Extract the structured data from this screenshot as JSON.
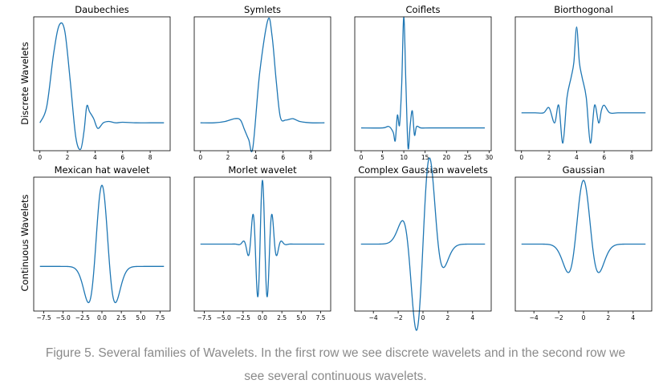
{
  "colors": {
    "line": "#1f77b4",
    "frame": "#000000",
    "caption": "#8a8a8a"
  },
  "row_labels": [
    "Discrete Wavelets",
    "Continuous Wavelets"
  ],
  "caption": {
    "line1": "Figure 5. Several families of Wavelets. In the first row we see discrete wavelets and in the second row we",
    "line2": "see several continuous wavelets."
  },
  "chart_data": [
    {
      "type": "line",
      "title": "Daubechies",
      "xlim": [
        -0.45,
        9.45
      ],
      "ylim": [
        -1.0,
        3.8
      ],
      "xticks": [
        0,
        2,
        4,
        6,
        8
      ],
      "tick_labels": [
        "0",
        "2",
        "4",
        "6",
        "8"
      ],
      "x": [
        0,
        0.5,
        1.0,
        1.4,
        1.8,
        2.2,
        2.6,
        2.95,
        3.2,
        3.4,
        3.6,
        3.9,
        4.2,
        4.6,
        5.0,
        5.5,
        6.0,
        7.0,
        8.0,
        9.0
      ],
      "y": [
        0.0,
        0.6,
        2.5,
        3.5,
        3.3,
        1.5,
        -0.5,
        -0.95,
        -0.3,
        0.6,
        0.4,
        0.15,
        -0.2,
        0.0,
        0.05,
        0.0,
        0.02,
        0.0,
        0.0,
        0.0
      ]
    },
    {
      "type": "line",
      "title": "Symlets",
      "xlim": [
        -0.45,
        9.45
      ],
      "ylim": [
        -1.0,
        3.8
      ],
      "xticks": [
        0,
        2,
        4,
        6,
        8
      ],
      "tick_labels": [
        "0",
        "2",
        "4",
        "6",
        "8"
      ],
      "x": [
        0,
        1.0,
        1.8,
        2.5,
        2.9,
        3.2,
        3.5,
        3.8,
        4.3,
        4.9,
        5.2,
        5.5,
        5.8,
        6.2,
        6.7,
        7.2,
        8.0,
        9.0
      ],
      "y": [
        0.0,
        0.0,
        0.05,
        0.15,
        0.1,
        -0.25,
        -0.6,
        -0.9,
        1.8,
        3.7,
        3.1,
        1.5,
        0.2,
        0.1,
        0.15,
        0.05,
        0.0,
        0.0
      ]
    },
    {
      "type": "line",
      "title": "Coiflets",
      "xlim": [
        -1.5,
        30.5
      ],
      "ylim": [
        -0.8,
        3.9
      ],
      "xticks": [
        0,
        5,
        10,
        15,
        20,
        25,
        30
      ],
      "tick_labels": [
        "0",
        "5",
        "10",
        "15",
        "20",
        "25",
        "30"
      ],
      "x": [
        0,
        5.0,
        6.5,
        7.5,
        8.0,
        8.5,
        9.0,
        9.5,
        10.0,
        10.5,
        11.0,
        11.5,
        12.0,
        12.5,
        13.0,
        14.0,
        16.0,
        20.0,
        29.0
      ],
      "y": [
        0.0,
        0.0,
        0.05,
        -0.15,
        -0.45,
        0.45,
        0.1,
        1.5,
        3.9,
        1.5,
        -0.7,
        0.1,
        0.6,
        -0.25,
        0.05,
        0.0,
        0.0,
        0.0,
        0.0
      ]
    },
    {
      "type": "line",
      "title": "Biorthogonal",
      "xlim": [
        -0.45,
        9.45
      ],
      "ylim": [
        -0.75,
        1.9
      ],
      "xticks": [
        0,
        2,
        4,
        6,
        8
      ],
      "tick_labels": [
        "0",
        "2",
        "4",
        "6",
        "8"
      ],
      "x": [
        0,
        1.0,
        1.6,
        2.0,
        2.4,
        2.7,
        3.0,
        3.3,
        3.6,
        3.8,
        4.0,
        4.2,
        4.4,
        4.7,
        5.0,
        5.3,
        5.6,
        5.8,
        6.0,
        6.4,
        7.0,
        8.0,
        9.0
      ],
      "y": [
        0.0,
        0.0,
        0.0,
        0.1,
        -0.2,
        0.15,
        -0.6,
        0.3,
        0.7,
        1.0,
        1.7,
        1.0,
        0.7,
        0.3,
        -0.6,
        0.15,
        -0.2,
        0.05,
        0.15,
        0.0,
        0.0,
        0.0,
        0.0
      ]
    },
    {
      "type": "line",
      "title": "Mexican hat wavelet",
      "xlim": [
        -8.8,
        8.8
      ],
      "ylim": [
        -0.55,
        1.1
      ],
      "xticks": [
        -7.5,
        -5.0,
        -2.5,
        0.0,
        2.5,
        5.0,
        7.5
      ],
      "tick_labels": [
        "−7.5",
        "−5.0",
        "−2.5",
        "0.0",
        "2.5",
        "5.0",
        "7.5"
      ],
      "function": "mexican_hat",
      "x_range": [
        -8,
        8
      ]
    },
    {
      "type": "line",
      "title": "Morlet wavelet",
      "xlim": [
        -8.8,
        8.8
      ],
      "ylim": [
        -1.05,
        1.05
      ],
      "xticks": [
        -7.5,
        -5.0,
        -2.5,
        0.0,
        2.5,
        5.0,
        7.5
      ],
      "tick_labels": [
        "−7.5",
        "−5.0",
        "−2.5",
        "0.0",
        "2.5",
        "5.0",
        "7.5"
      ],
      "function": "morlet",
      "x_range": [
        -8,
        8
      ]
    },
    {
      "type": "line",
      "title": "Complex Gaussian wavelets",
      "xlim": [
        -5.5,
        5.5
      ],
      "ylim": [
        -1.05,
        1.05
      ],
      "xticks": [
        -4,
        -2,
        0,
        2,
        4
      ],
      "tick_labels": [
        "−4",
        "−2",
        "0",
        "2",
        "4"
      ],
      "function": "complex_gaussian",
      "x_range": [
        -5,
        5
      ]
    },
    {
      "type": "line",
      "title": "Gaussian",
      "xlim": [
        -5.5,
        5.5
      ],
      "ylim": [
        -1.05,
        1.05
      ],
      "xticks": [
        -4,
        -2,
        0,
        2,
        4
      ],
      "tick_labels": [
        "−4",
        "−2",
        "0",
        "2",
        "4"
      ],
      "function": "gaussian_deriv",
      "x_range": [
        -5,
        5
      ]
    }
  ]
}
